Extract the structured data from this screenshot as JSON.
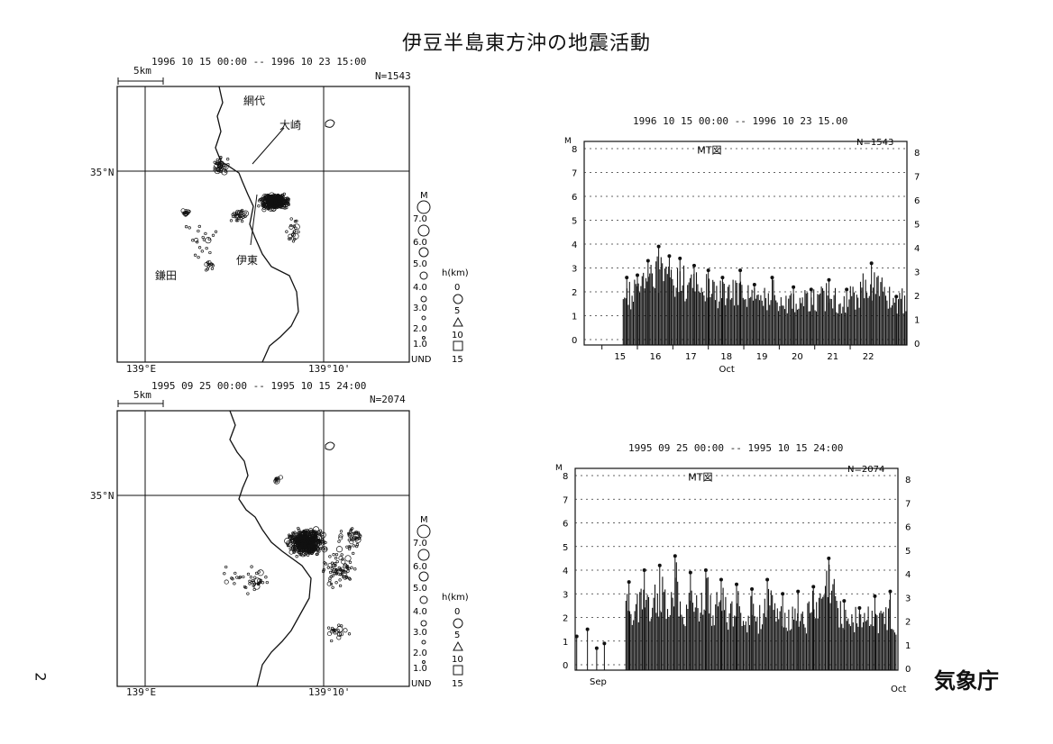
{
  "title": "伊豆半島東方沖の地震活動",
  "agency": "気象庁",
  "page_number": "2",
  "maps": [
    {
      "period": "1996 10 15 00:00 -- 1996 10 23 15:00",
      "count": "N=1543",
      "scale_label": "5km",
      "lat_label": "35°N",
      "lon_labels": [
        "139°E",
        "139°10'"
      ],
      "place_labels": [
        "網代",
        "大崎",
        "伊東",
        "鎌田"
      ]
    },
    {
      "period": "1995 09 25 00:00 -- 1995 10 15 24:00",
      "count": "N=2074",
      "scale_label": "5km",
      "lat_label": "35°N",
      "lon_labels": [
        "139°E",
        "139°10'"
      ],
      "place_labels": []
    }
  ],
  "legend": {
    "magnitude_title": "M",
    "magnitudes": [
      "7.0",
      "6.0",
      "5.0",
      "4.0",
      "3.0",
      "2.0",
      "1.0",
      "UND"
    ],
    "depth_title": "h(km)",
    "depths": [
      "0",
      "5",
      "10",
      "15"
    ]
  },
  "chart_data": [
    {
      "type": "bar",
      "period": "1996 10 15 00:00 -- 1996 10 23 15.00",
      "label": "MT図",
      "count": "N=1543",
      "ylabel": "M",
      "ylim": [
        0,
        8
      ],
      "yticks_left": [
        "0",
        "1",
        "2",
        "3",
        "4",
        "5",
        "6",
        "7",
        "8"
      ],
      "yticks_right": [
        "0",
        "1",
        "2",
        "3",
        "4",
        "5",
        "6",
        "7",
        "8"
      ],
      "xticks": [
        "15",
        "16",
        "17",
        "18",
        "19",
        "20",
        "21",
        "22"
      ],
      "xlabel": "Oct",
      "x_range_days": [
        14.5,
        23.6
      ],
      "activity_start": 15.6,
      "peaks": [
        {
          "x": 15.7,
          "m": 2.6
        },
        {
          "x": 16.0,
          "m": 2.7
        },
        {
          "x": 16.3,
          "m": 3.3
        },
        {
          "x": 16.6,
          "m": 3.9
        },
        {
          "x": 16.9,
          "m": 3.5
        },
        {
          "x": 17.2,
          "m": 3.4
        },
        {
          "x": 17.6,
          "m": 3.1
        },
        {
          "x": 18.0,
          "m": 2.9
        },
        {
          "x": 18.4,
          "m": 2.6
        },
        {
          "x": 18.9,
          "m": 2.9
        },
        {
          "x": 19.3,
          "m": 2.3
        },
        {
          "x": 19.8,
          "m": 2.6
        },
        {
          "x": 20.4,
          "m": 2.2
        },
        {
          "x": 20.9,
          "m": 2.1
        },
        {
          "x": 21.4,
          "m": 2.5
        },
        {
          "x": 21.9,
          "m": 2.1
        },
        {
          "x": 22.6,
          "m": 3.2
        },
        {
          "x": 23.3,
          "m": 1.8
        }
      ]
    },
    {
      "type": "bar",
      "period": "1995 09 25 00:00 -- 1995 10 15 24:00",
      "label": "MT図",
      "count": "N=2074",
      "ylabel": "M",
      "ylim": [
        0,
        8
      ],
      "yticks_left": [
        "0",
        "1",
        "2",
        "3",
        "4",
        "5",
        "6",
        "7",
        "8"
      ],
      "yticks_right": [
        "0",
        "1",
        "2",
        "3",
        "4",
        "5",
        "6",
        "7",
        "8"
      ],
      "xticks": [
        "Sep",
        "Oct"
      ],
      "x_range_days": [
        25,
        46
      ],
      "activity_start": 28.3,
      "peaks": [
        {
          "x": 25.1,
          "m": 1.2
        },
        {
          "x": 25.8,
          "m": 1.5
        },
        {
          "x": 26.4,
          "m": 0.7
        },
        {
          "x": 26.9,
          "m": 0.9
        },
        {
          "x": 28.5,
          "m": 3.5
        },
        {
          "x": 29.5,
          "m": 4.0
        },
        {
          "x": 30.5,
          "m": 4.2
        },
        {
          "x": 31.5,
          "m": 4.6
        },
        {
          "x": 32.5,
          "m": 3.9
        },
        {
          "x": 33.5,
          "m": 4.0
        },
        {
          "x": 34.5,
          "m": 3.6
        },
        {
          "x": 35.5,
          "m": 3.4
        },
        {
          "x": 36.5,
          "m": 3.2
        },
        {
          "x": 37.5,
          "m": 3.6
        },
        {
          "x": 38.5,
          "m": 3.0
        },
        {
          "x": 39.5,
          "m": 3.1
        },
        {
          "x": 40.5,
          "m": 3.3
        },
        {
          "x": 41.5,
          "m": 4.5
        },
        {
          "x": 42.5,
          "m": 2.7
        },
        {
          "x": 43.5,
          "m": 2.4
        },
        {
          "x": 44.5,
          "m": 2.9
        },
        {
          "x": 45.5,
          "m": 3.1
        }
      ]
    }
  ]
}
